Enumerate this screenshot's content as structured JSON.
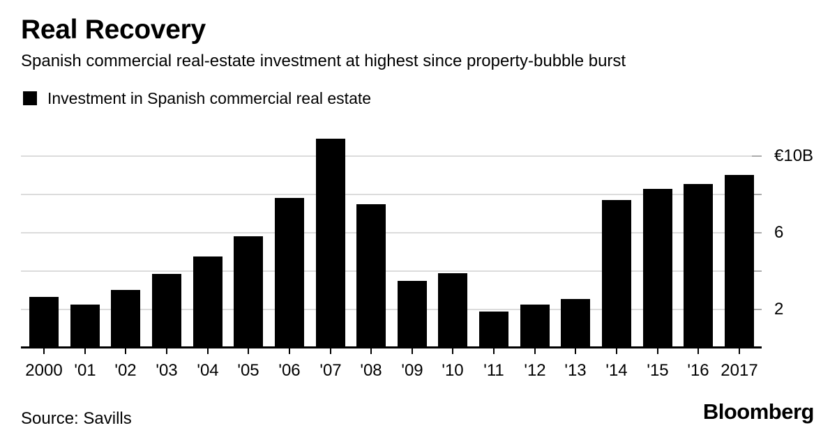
{
  "header": {
    "title": "Real Recovery",
    "subtitle": "Spanish commercial real-estate investment at highest since property-bubble burst"
  },
  "legend": {
    "label": "Investment in Spanish commercial real estate",
    "swatch_color": "#000000"
  },
  "chart_data": {
    "type": "bar",
    "title": "Real Recovery",
    "subtitle": "Spanish commercial real-estate investment at highest since property-bubble burst",
    "categories": [
      "2000",
      "'01",
      "'02",
      "'03",
      "'04",
      "'05",
      "'06",
      "'07",
      "'08",
      "'09",
      "'10",
      "'11",
      "'12",
      "'13",
      "'14",
      "'15",
      "'16",
      "2017"
    ],
    "series": [
      {
        "name": "Investment in Spanish commercial real estate",
        "values": [
          2.65,
          2.25,
          3.0,
          3.85,
          4.75,
          5.8,
          7.8,
          10.9,
          7.5,
          3.5,
          3.9,
          1.9,
          2.25,
          2.55,
          7.7,
          8.3,
          8.55,
          9.0
        ]
      }
    ],
    "unit": "EUR billions",
    "ylim": [
      0,
      11.4
    ],
    "gridline_values": [
      2,
      4,
      6,
      8,
      10
    ],
    "y_axis_labels": [
      {
        "value": 10,
        "label": "€10B"
      },
      {
        "value": 6,
        "label": "6"
      },
      {
        "value": 2,
        "label": "2"
      }
    ],
    "y_axis_side": "right",
    "grid": "horizontal",
    "legend_position": "top-left",
    "bar_color": "#000000",
    "grid_color": "#dcdcdc",
    "grid_tick_color": "#ababab",
    "axis_color": "#000000"
  },
  "footer": {
    "source": "Source: Savills",
    "brand": "Bloomberg"
  }
}
